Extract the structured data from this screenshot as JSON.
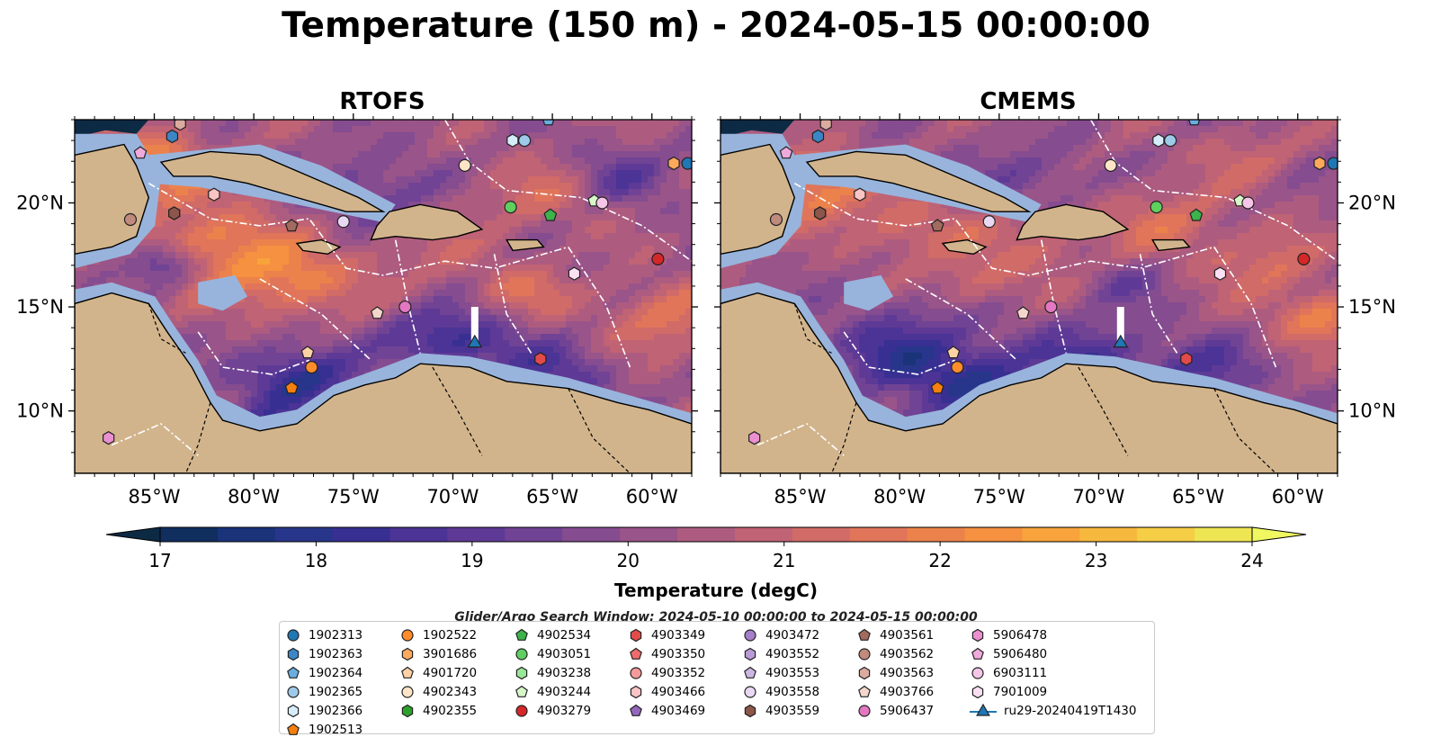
{
  "title": "Temperature (150 m) - 2024-05-15 00:00:00",
  "panels": [
    {
      "title": "RTOFS"
    },
    {
      "title": "CMEMS"
    }
  ],
  "axes": {
    "lat_ticks": [
      "20°N",
      "15°N",
      "10°N"
    ],
    "lon_ticks": [
      "85°W",
      "80°W",
      "75°W",
      "70°W",
      "65°W",
      "60°W"
    ],
    "lon_range": [
      -89,
      -58
    ],
    "lat_range": [
      7,
      24
    ]
  },
  "colorbar": {
    "label": "Temperature (degC)",
    "min": 16.5,
    "max": 24.5,
    "step": 0.5,
    "ticks": [
      "17",
      "18",
      "19",
      "20",
      "21",
      "22",
      "23",
      "24"
    ],
    "colors": [
      "#0d2a44",
      "#102e5e",
      "#1a3379",
      "#27368a",
      "#382f92",
      "#4b3495",
      "#5e3a96",
      "#714394",
      "#854c90",
      "#995489",
      "#ad5c80",
      "#c06375",
      "#d16b68",
      "#e0755a",
      "#ec824b",
      "#f59140",
      "#f8a33c",
      "#f7b83e",
      "#f6ce45",
      "#eee552",
      "#f0f760"
    ]
  },
  "search_window": "Glider/Argo Search Window: 2024-05-10 00:00:00 to 2024-05-15 00:00:00",
  "legend": {
    "columns": [
      [
        {
          "label": "1902313",
          "marker": "circle",
          "color": "#1f77b4"
        },
        {
          "label": "1902363",
          "marker": "hexagon",
          "color": "#3a86c6"
        },
        {
          "label": "1902364",
          "marker": "pentagon",
          "color": "#6aaee0"
        },
        {
          "label": "1902365",
          "marker": "circle",
          "color": "#9ecae9"
        },
        {
          "label": "1902366",
          "marker": "hexagon",
          "color": "#d6ecfa"
        },
        {
          "label": "1902513",
          "marker": "pentagon",
          "color": "#f57f0f"
        }
      ],
      [
        {
          "label": "1902522",
          "marker": "circle",
          "color": "#ff8c2a"
        },
        {
          "label": "3901686",
          "marker": "hexagon",
          "color": "#ffa95c"
        },
        {
          "label": "4901720",
          "marker": "pentagon",
          "color": "#ffd2a6"
        },
        {
          "label": "4902343",
          "marker": "circle",
          "color": "#ffe4c8"
        },
        {
          "label": "4902355",
          "marker": "hexagon",
          "color": "#2ca02c"
        }
      ],
      [
        {
          "label": "4902534",
          "marker": "pentagon",
          "color": "#3cb44b"
        },
        {
          "label": "4903051",
          "marker": "circle",
          "color": "#5fcf5f"
        },
        {
          "label": "4903238",
          "marker": "hexagon",
          "color": "#98e698"
        },
        {
          "label": "4903244",
          "marker": "pentagon",
          "color": "#d7f7c8"
        },
        {
          "label": "4903279",
          "marker": "circle",
          "color": "#d62728"
        }
      ],
      [
        {
          "label": "4903349",
          "marker": "hexagon",
          "color": "#e34a4a"
        },
        {
          "label": "4903350",
          "marker": "pentagon",
          "color": "#ef6b6b"
        },
        {
          "label": "4903352",
          "marker": "circle",
          "color": "#f59a9a"
        },
        {
          "label": "4903466",
          "marker": "hexagon",
          "color": "#fbc4c4"
        },
        {
          "label": "4903469",
          "marker": "pentagon",
          "color": "#9467bd"
        }
      ],
      [
        {
          "label": "4903472",
          "marker": "circle",
          "color": "#a57fca"
        },
        {
          "label": "4903552",
          "marker": "hexagon",
          "color": "#b89ad6"
        },
        {
          "label": "4903553",
          "marker": "pentagon",
          "color": "#cdb7e3"
        },
        {
          "label": "4903558",
          "marker": "circle",
          "color": "#e8d8f4"
        },
        {
          "label": "4903559",
          "marker": "hexagon",
          "color": "#8c564b"
        }
      ],
      [
        {
          "label": "4903561",
          "marker": "pentagon",
          "color": "#a26b5f"
        },
        {
          "label": "4903562",
          "marker": "circle",
          "color": "#c08a7d"
        },
        {
          "label": "4903563",
          "marker": "hexagon",
          "color": "#dbab9f"
        },
        {
          "label": "4903766",
          "marker": "pentagon",
          "color": "#f4d6cc"
        },
        {
          "label": "5906437",
          "marker": "circle",
          "color": "#e377c2"
        }
      ],
      [
        {
          "label": "5906478",
          "marker": "hexagon",
          "color": "#ea8fcf"
        },
        {
          "label": "5906480",
          "marker": "pentagon",
          "color": "#f0a9db"
        },
        {
          "label": "6903111",
          "marker": "circle",
          "color": "#f6c6e8"
        },
        {
          "label": "7901009",
          "marker": "hexagon",
          "color": "#fbe0f3"
        },
        {
          "label": "ru29-20240419T1430",
          "marker": "triangle-line",
          "color": "#1f77b4"
        }
      ]
    ]
  },
  "floats": [
    {
      "id": "1902313",
      "lon": -58.2,
      "lat": 21.9
    },
    {
      "id": "1902363",
      "lon": -84.1,
      "lat": 23.2
    },
    {
      "id": "1902364",
      "lon": -65.2,
      "lat": 24.0
    },
    {
      "id": "1902365",
      "lon": -66.4,
      "lat": 23.0
    },
    {
      "id": "1902366",
      "lon": -67.0,
      "lat": 23.0
    },
    {
      "id": "1902513",
      "lon": -78.1,
      "lat": 11.1
    },
    {
      "id": "1902522",
      "lon": -77.1,
      "lat": 12.1
    },
    {
      "id": "3901686",
      "lon": -58.9,
      "lat": 21.9
    },
    {
      "id": "4901720",
      "lon": -77.3,
      "lat": 12.8
    },
    {
      "id": "4902343",
      "lon": -69.4,
      "lat": 21.8
    },
    {
      "id": "4902355",
      "lon": -84.0,
      "lat": 19.5
    },
    {
      "id": "4902534",
      "lon": -65.1,
      "lat": 19.4
    },
    {
      "id": "4903051",
      "lon": -67.1,
      "lat": 19.8
    },
    {
      "id": "4903244",
      "lon": -62.9,
      "lat": 20.1
    },
    {
      "id": "4903279",
      "lon": -59.7,
      "lat": 17.3
    },
    {
      "id": "4903349",
      "lon": -65.6,
      "lat": 12.5
    },
    {
      "id": "4903466",
      "lon": -82.0,
      "lat": 20.4
    },
    {
      "id": "4903558",
      "lon": -75.5,
      "lat": 19.1
    },
    {
      "id": "4903559",
      "lon": -84.0,
      "lat": 19.5
    },
    {
      "id": "4903561",
      "lon": -78.1,
      "lat": 18.9
    },
    {
      "id": "4903562",
      "lon": -86.2,
      "lat": 19.2
    },
    {
      "id": "4903563",
      "lon": -83.7,
      "lat": 23.8
    },
    {
      "id": "4903766",
      "lon": -73.8,
      "lat": 14.7
    },
    {
      "id": "5906437",
      "lon": -72.4,
      "lat": 15.0
    },
    {
      "id": "5906478",
      "lon": -87.3,
      "lat": 8.7
    },
    {
      "id": "5906480",
      "lon": -85.7,
      "lat": 22.4
    },
    {
      "id": "6903111",
      "lon": -62.5,
      "lat": 20.0
    },
    {
      "id": "7901009",
      "lon": -63.9,
      "lat": 16.6
    },
    {
      "id": "ru29-20240419T1430",
      "lon": -68.9,
      "lat": 13.3
    }
  ],
  "glider_track": {
    "lon": -68.9,
    "lat_from": 13.3,
    "lat_to": 15.0
  }
}
